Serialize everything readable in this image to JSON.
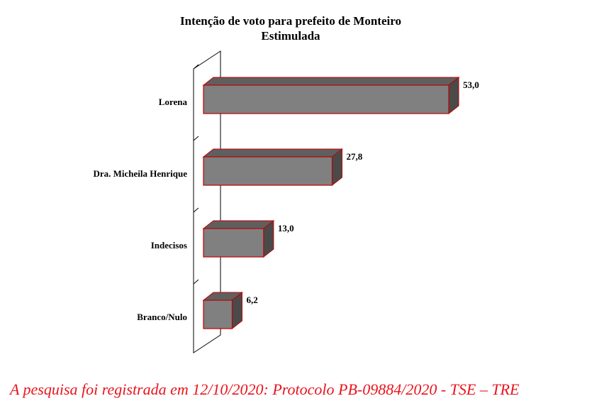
{
  "chart_data": {
    "type": "bar",
    "orientation": "horizontal",
    "title": "Intenção de voto para prefeito de Monteiro",
    "subtitle": "Estimulada",
    "categories": [
      "Lorena",
      "Dra. Micheila Henrique",
      "Indecisos",
      "Branco/Nulo"
    ],
    "values": [
      53.0,
      27.8,
      13.0,
      6.2
    ],
    "value_labels": [
      "53,0",
      "27,8",
      "13,0",
      "6,2"
    ],
    "xlim": [
      0,
      53
    ],
    "grid": false,
    "legend": "none",
    "bar_color": "#808080",
    "bar_edge_color": "#c00000",
    "style": "3d"
  },
  "footer": {
    "text": "A pesquisa foi registrada em 12/10/2020: Protocolo PB-09884/2020 - TSE – TRE",
    "color": "#e8141c"
  }
}
